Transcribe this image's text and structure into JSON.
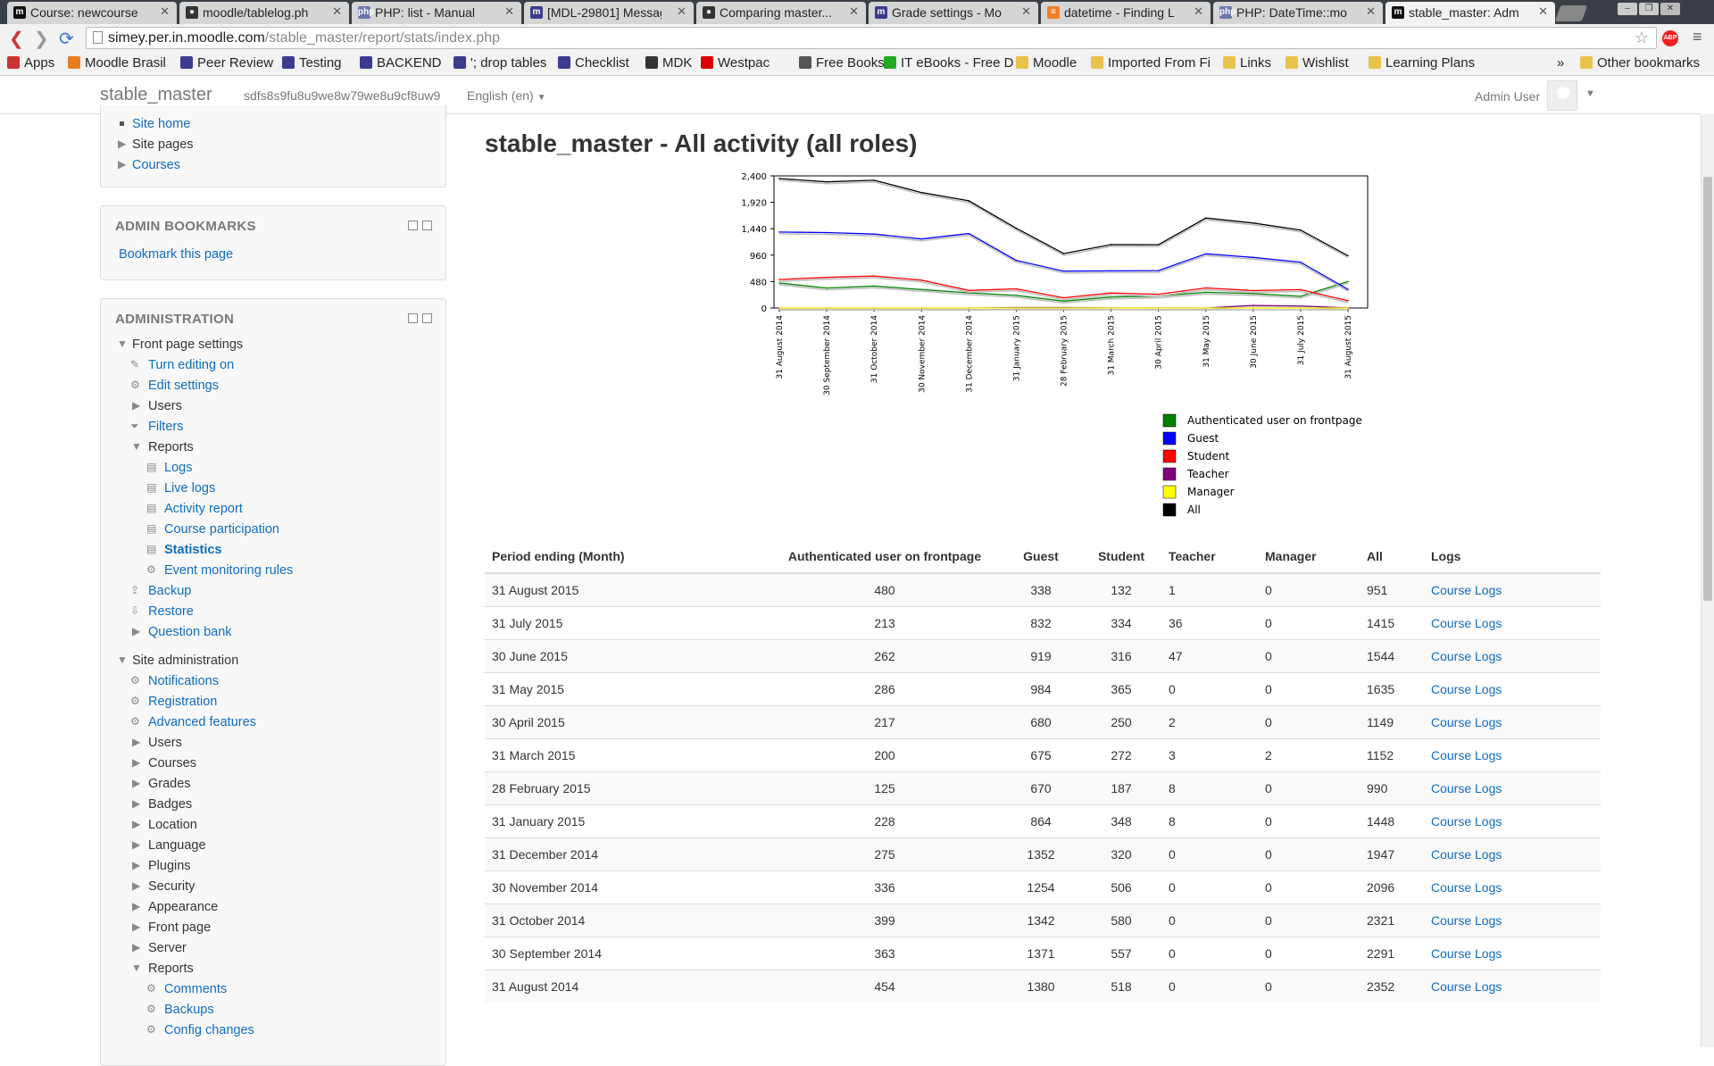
{
  "browser": {
    "tabs": [
      {
        "title": "Course: newcourse",
        "icon": "moodle-icon"
      },
      {
        "title": "moodle/tablelog.ph",
        "icon": "github-icon"
      },
      {
        "title": "PHP: list - Manual",
        "icon": "php-icon"
      },
      {
        "title": "[MDL-29801] Messag",
        "icon": "moodle-tracker-icon"
      },
      {
        "title": "Comparing master...",
        "icon": "github-icon"
      },
      {
        "title": "Grade settings - Mo",
        "icon": "moodle-tracker-icon"
      },
      {
        "title": "datetime - Finding L",
        "icon": "stackoverflow-icon"
      },
      {
        "title": "PHP: DateTime::mo",
        "icon": "php-icon"
      },
      {
        "title": "stable_master: Adm",
        "icon": "moodle-icon"
      }
    ],
    "url_host": "simey.per.in.moodle.com",
    "url_path": "/stable_master/report/stats/index.php",
    "bookmarks": [
      "Apps",
      "Moodle Brasil",
      "Peer Review",
      "Testing",
      "BACKEND",
      "'; drop tables",
      "Checklist",
      "MDK",
      "Westpac",
      "Free Books",
      "IT eBooks - Free D",
      "Moodle",
      "Imported From Fi",
      "Links",
      "Wishlist",
      "Learning Plans"
    ],
    "other_bookmarks": "Other bookmarks",
    "overflow": "»"
  },
  "navbar": {
    "brand": "stable_master",
    "token": "sdfs8s9fu8u9we8w79we8u9cf8uw9",
    "language": "English (en)",
    "user": "Admin User"
  },
  "sidebar": {
    "nav_items": {
      "site_home": "Site home",
      "site_pages": "Site pages",
      "courses": "Courses"
    },
    "admin_bookmarks": {
      "title": "ADMIN BOOKMARKS",
      "bookmark_link": "Bookmark this page"
    },
    "administration": {
      "title": "ADMINISTRATION",
      "front_page_settings": "Front page settings",
      "turn_editing_on": "Turn editing on",
      "edit_settings": "Edit settings",
      "users": "Users",
      "filters": "Filters",
      "reports": "Reports",
      "report_items": [
        "Logs",
        "Live logs",
        "Activity report",
        "Course participation",
        "Statistics",
        "Event monitoring rules"
      ],
      "backup": "Backup",
      "restore": "Restore",
      "question_bank": "Question bank",
      "site_administration": "Site administration",
      "site_admin_items": [
        "Notifications",
        "Registration",
        "Advanced features"
      ],
      "site_admin_folders": [
        "Users",
        "Courses",
        "Grades",
        "Badges",
        "Location",
        "Language",
        "Plugins",
        "Security",
        "Appearance",
        "Front page",
        "Server"
      ],
      "site_reports": "Reports",
      "site_report_items": [
        "Comments",
        "Backups",
        "Config changes"
      ]
    }
  },
  "main": {
    "title": "stable_master - All activity (all roles)",
    "table": {
      "headers": [
        "Period ending (Month)",
        "Authenticated user on frontpage",
        "Guest",
        "Student",
        "Teacher",
        "Manager",
        "All",
        "Logs"
      ],
      "link_text": "Course Logs",
      "rows": [
        [
          "31 August 2015",
          "480",
          "338",
          "132",
          "1",
          "0",
          "951"
        ],
        [
          "31 July 2015",
          "213",
          "832",
          "334",
          "36",
          "0",
          "1415"
        ],
        [
          "30 June 2015",
          "262",
          "919",
          "316",
          "47",
          "0",
          "1544"
        ],
        [
          "31 May 2015",
          "286",
          "984",
          "365",
          "0",
          "0",
          "1635"
        ],
        [
          "30 April 2015",
          "217",
          "680",
          "250",
          "2",
          "0",
          "1149"
        ],
        [
          "31 March 2015",
          "200",
          "675",
          "272",
          "3",
          "2",
          "1152"
        ],
        [
          "28 February 2015",
          "125",
          "670",
          "187",
          "8",
          "0",
          "990"
        ],
        [
          "31 January 2015",
          "228",
          "864",
          "348",
          "8",
          "0",
          "1448"
        ],
        [
          "31 December 2014",
          "275",
          "1352",
          "320",
          "0",
          "0",
          "1947"
        ],
        [
          "30 November 2014",
          "336",
          "1254",
          "506",
          "0",
          "0",
          "2096"
        ],
        [
          "31 October 2014",
          "399",
          "1342",
          "580",
          "0",
          "0",
          "2321"
        ],
        [
          "30 September 2014",
          "363",
          "1371",
          "557",
          "0",
          "0",
          "2291"
        ],
        [
          "31 August 2014",
          "454",
          "1380",
          "518",
          "0",
          "0",
          "2352"
        ]
      ]
    }
  },
  "chart_data": {
    "type": "line",
    "x": [
      "31 August 2014",
      "30 September 2014",
      "31 October 2014",
      "30 November 2014",
      "31 December 2014",
      "31 January 2015",
      "28 February 2015",
      "31 March 2015",
      "30 April 2015",
      "31 May 2015",
      "30 June 2015",
      "31 July 2015",
      "31 August 2015"
    ],
    "ylim": [
      0,
      2400
    ],
    "yticks": [
      "0",
      "480",
      "960",
      "1,440",
      "1,920",
      "2,400"
    ],
    "series": [
      {
        "name": "Authenticated user on frontpage",
        "color": "#008000",
        "values": [
          454,
          363,
          399,
          336,
          275,
          228,
          125,
          200,
          217,
          286,
          262,
          213,
          480
        ]
      },
      {
        "name": "Guest",
        "color": "#0000ff",
        "values": [
          1380,
          1371,
          1342,
          1254,
          1352,
          864,
          670,
          675,
          680,
          984,
          919,
          832,
          338
        ]
      },
      {
        "name": "Student",
        "color": "#ff0000",
        "values": [
          518,
          557,
          580,
          506,
          320,
          348,
          187,
          272,
          250,
          365,
          316,
          334,
          132
        ]
      },
      {
        "name": "Teacher",
        "color": "#800080",
        "values": [
          0,
          0,
          0,
          0,
          0,
          8,
          8,
          3,
          2,
          0,
          47,
          36,
          1
        ]
      },
      {
        "name": "Manager",
        "color": "#ffff00",
        "values": [
          0,
          0,
          0,
          0,
          0,
          0,
          0,
          2,
          0,
          0,
          0,
          0,
          0
        ]
      },
      {
        "name": "All",
        "color": "#000000",
        "values": [
          2352,
          2291,
          2321,
          2096,
          1947,
          1448,
          990,
          1152,
          1149,
          1635,
          1544,
          1415,
          951
        ]
      }
    ]
  }
}
